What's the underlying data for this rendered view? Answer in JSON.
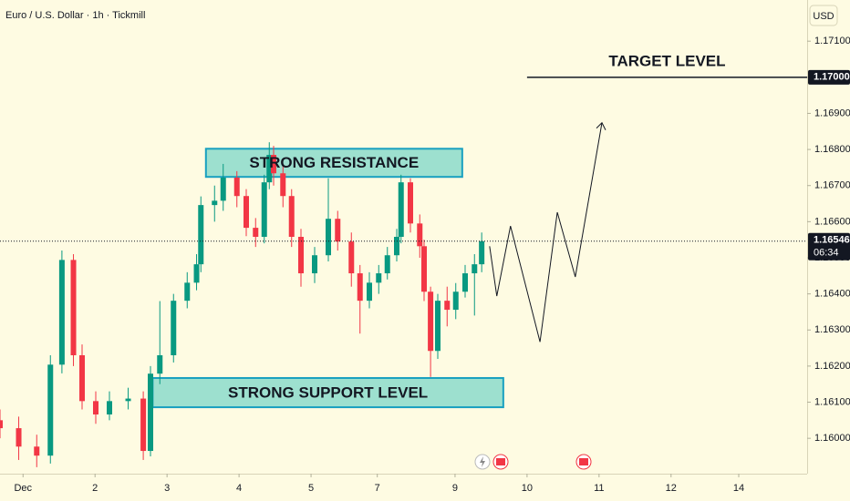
{
  "chart_data": {
    "type": "candlestick",
    "title": "Euro / U.S. Dollar · 1h · Tickmill",
    "currency": "USD",
    "up_color": "#089981",
    "down_color": "#f23645",
    "x": [
      -0.32,
      -0.06,
      0.19,
      0.38,
      0.54,
      0.7,
      0.82,
      1.01,
      1.2,
      1.46,
      1.67,
      1.77,
      1.9,
      2.09,
      2.28,
      2.41,
      2.47,
      2.66,
      2.78,
      2.97,
      3.1,
      3.23,
      3.35,
      3.42,
      3.48,
      3.61,
      3.73,
      3.86,
      4.05,
      4.24,
      4.37,
      4.56,
      4.68,
      4.81,
      4.94,
      5.06,
      5.19,
      5.25,
      5.38,
      5.51,
      5.57,
      5.66,
      5.76,
      5.89,
      6.01,
      6.14,
      6.27,
      6.37
    ],
    "open": [
      1.1605,
      1.16028,
      1.15977,
      1.15952,
      1.16204,
      1.16494,
      1.1623,
      1.16103,
      1.16066,
      1.16103,
      1.1611,
      1.15965,
      1.16179,
      1.1623,
      1.16381,
      1.16431,
      1.16482,
      1.16646,
      1.16658,
      1.16722,
      1.16671,
      1.16583,
      1.16558,
      1.16709,
      1.16785,
      1.16734,
      1.16671,
      1.16558,
      1.16457,
      1.16507,
      1.16608,
      1.16545,
      1.16457,
      1.16381,
      1.16431,
      1.16457,
      1.16507,
      1.16558,
      1.16709,
      1.16595,
      1.16532,
      1.16406,
      1.16242,
      1.16381,
      1.16356,
      1.16406,
      1.16457,
      1.16482
    ],
    "high": [
      1.1608,
      1.1606,
      1.1601,
      1.1623,
      1.1652,
      1.1651,
      1.1626,
      1.1613,
      1.1613,
      1.1614,
      1.1613,
      1.162,
      1.1638,
      1.164,
      1.1646,
      1.1651,
      1.1667,
      1.167,
      1.1676,
      1.1674,
      1.1669,
      1.1661,
      1.1673,
      1.1682,
      1.1681,
      1.1676,
      1.1669,
      1.1658,
      1.1653,
      1.1672,
      1.1663,
      1.1657,
      1.1648,
      1.1646,
      1.1648,
      1.1653,
      1.1658,
      1.1673,
      1.1672,
      1.1662,
      1.1655,
      1.1642,
      1.164,
      1.1642,
      1.1643,
      1.1648,
      1.1651,
      1.1657
    ],
    "low": [
      1.16,
      1.1594,
      1.1592,
      1.1593,
      1.1618,
      1.162,
      1.1608,
      1.1604,
      1.1605,
      1.1608,
      1.1594,
      1.1595,
      1.1615,
      1.1621,
      1.1636,
      1.1641,
      1.1646,
      1.166,
      1.1663,
      1.1664,
      1.1656,
      1.1653,
      1.1654,
      1.1669,
      1.167,
      1.1664,
      1.1653,
      1.1642,
      1.1643,
      1.1649,
      1.1652,
      1.1642,
      1.1629,
      1.1636,
      1.164,
      1.1644,
      1.1649,
      1.1654,
      1.1657,
      1.165,
      1.1638,
      1.1617,
      1.1622,
      1.1631,
      1.1633,
      1.1639,
      1.1634,
      1.1646
    ],
    "close": [
      1.16028,
      1.15977,
      1.15952,
      1.16204,
      1.16494,
      1.1623,
      1.16103,
      1.16066,
      1.16103,
      1.1611,
      1.15965,
      1.16179,
      1.1623,
      1.16381,
      1.16431,
      1.16482,
      1.16646,
      1.16658,
      1.16722,
      1.16671,
      1.16583,
      1.16558,
      1.16709,
      1.16785,
      1.16734,
      1.16671,
      1.16558,
      1.16457,
      1.16507,
      1.16608,
      1.16545,
      1.16457,
      1.16381,
      1.16431,
      1.16457,
      1.16507,
      1.16558,
      1.16709,
      1.16595,
      1.16532,
      1.16406,
      1.16242,
      1.16381,
      1.16356,
      1.16406,
      1.16457,
      1.16482,
      1.16546
    ],
    "xlim": [
      -0.32,
      10.89
    ],
    "xticks": [
      {
        "value": 0,
        "label": "Dec"
      },
      {
        "value": 1,
        "label": "2"
      },
      {
        "value": 2,
        "label": "3"
      },
      {
        "value": 3,
        "label": "4"
      },
      {
        "value": 4,
        "label": "5"
      },
      {
        "value": 4.92,
        "label": "7"
      },
      {
        "value": 6,
        "label": "9"
      },
      {
        "value": 7,
        "label": "10"
      },
      {
        "value": 8,
        "label": "11"
      },
      {
        "value": 9,
        "label": "12"
      },
      {
        "value": 9.94,
        "label": "14"
      }
    ],
    "ylim": [
      1.15902,
      1.17214
    ],
    "yticks": [
      {
        "value": 1.16,
        "label": "1.16000"
      },
      {
        "value": 1.161,
        "label": "1.16100"
      },
      {
        "value": 1.162,
        "label": "1.16200"
      },
      {
        "value": 1.163,
        "label": "1.16300"
      },
      {
        "value": 1.164,
        "label": "1.16400"
      },
      {
        "value": 1.165,
        "label": "1.16500"
      },
      {
        "value": 1.166,
        "label": "1.16600"
      },
      {
        "value": 1.167,
        "label": "1.16700"
      },
      {
        "value": 1.168,
        "label": "1.16800"
      },
      {
        "value": 1.169,
        "label": "1.16900"
      },
      {
        "value": 1.17,
        "label": "1.17000"
      },
      {
        "value": 1.171,
        "label": "1.17100"
      }
    ],
    "last_price": {
      "value": 1.16546,
      "countdown": "06:34"
    },
    "target": {
      "label": "TARGET LEVEL",
      "value": 1.17,
      "price_label": "1.17000",
      "x0": 7.0
    },
    "zones": [
      {
        "label": "STRONG RESISTANCE",
        "low": 1.16724,
        "high": 1.16802,
        "x0": 2.54,
        "x1": 6.1
      },
      {
        "label": "STRONG SUPPORT LEVEL",
        "low": 1.16086,
        "high": 1.16167,
        "x0": 1.8,
        "x1": 6.67
      }
    ],
    "projection": {
      "x": [
        6.48,
        6.58,
        6.77,
        7.18,
        7.42,
        7.67,
        8.04
      ],
      "values": [
        1.16532,
        1.16394,
        1.16588,
        1.16267,
        1.16626,
        1.16447,
        1.16874
      ]
    }
  }
}
